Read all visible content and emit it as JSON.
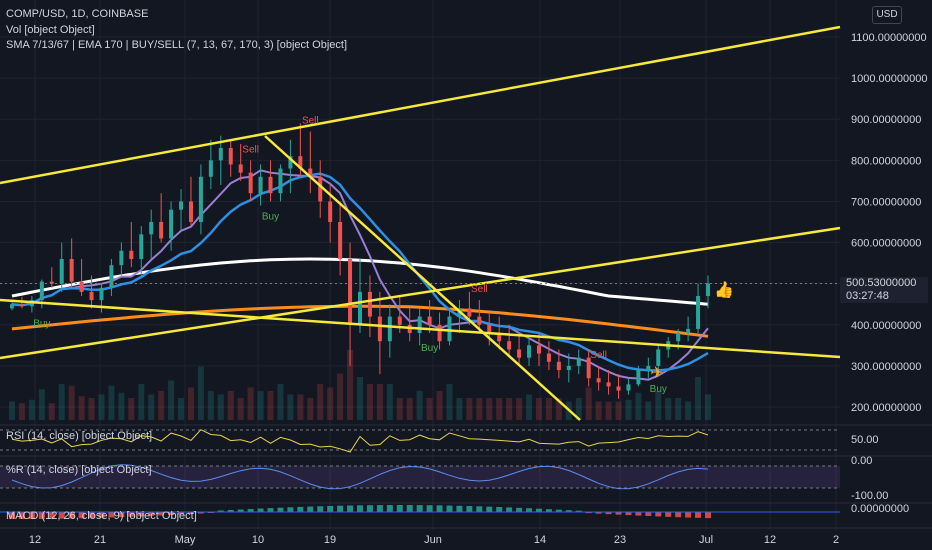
{
  "header": {
    "title": "COMP/USD, 1D, COINBASE",
    "vol_legend": "Vol [object Object]",
    "indicator_legend": "SMA 7/13/67 | EMA 170 | BUY/SELL (7, 13, 67, 170, 3) [object Object]",
    "currency": "USD"
  },
  "price_tag": {
    "price": "500.53000000",
    "countdown": "03:27:48"
  },
  "panes": {
    "rsi_legend": "RSI (14, close) [object Object]",
    "wr_legend": "%R (14, close) [object Object]",
    "macd_legend": "MACD (12, 26, close, 9) [object Object]"
  },
  "icons": {
    "current_bar_marker": "thumbs-up-icon",
    "signal_marker": "airplane-icon"
  },
  "colors": {
    "background": "#131722",
    "up": "#26a69a",
    "down": "#ef5350",
    "trendline": "#f7e93b",
    "sma_fast": "#9b7fd4",
    "sma_mid": "#2e8fe3",
    "sma_slow": "#ffffff",
    "ema": "#ff8c1a",
    "buy": "#4caf50",
    "sell": "#ef5350"
  },
  "chart_data": [
    {
      "type": "candlestick",
      "title": "COMP/USD, 1D, COINBASE",
      "x_ticks": [
        "12",
        "21",
        "May",
        "10",
        "19",
        "Jun",
        "14",
        "23",
        "Jul",
        "12",
        "2"
      ],
      "y_ticks": [
        "200.00000000",
        "300.00000000",
        "400.00000000",
        "500.00000000",
        "600.00000000",
        "700.00000000",
        "800.00000000",
        "900.00000000",
        "1000.00000000",
        "1100.00000000"
      ],
      "ylim": [
        150,
        1150
      ],
      "last_price": 500.53,
      "candles": [
        [
          440,
          455,
          435,
          450
        ],
        [
          450,
          468,
          440,
          445
        ],
        [
          445,
          470,
          430,
          460
        ],
        [
          460,
          510,
          440,
          505
        ],
        [
          505,
          540,
          490,
          500
        ],
        [
          500,
          600,
          480,
          560
        ],
        [
          560,
          610,
          490,
          505
        ],
        [
          505,
          560,
          470,
          480
        ],
        [
          480,
          520,
          440,
          460
        ],
        [
          460,
          500,
          430,
          490
        ],
        [
          490,
          560,
          470,
          545
        ],
        [
          545,
          600,
          520,
          580
        ],
        [
          580,
          650,
          540,
          560
        ],
        [
          560,
          640,
          520,
          620
        ],
        [
          620,
          680,
          560,
          650
        ],
        [
          650,
          720,
          600,
          610
        ],
        [
          610,
          700,
          580,
          680
        ],
        [
          680,
          730,
          630,
          700
        ],
        [
          700,
          760,
          640,
          650
        ],
        [
          650,
          790,
          620,
          760
        ],
        [
          760,
          850,
          730,
          800
        ],
        [
          800,
          860,
          740,
          830
        ],
        [
          830,
          850,
          760,
          790
        ],
        [
          790,
          840,
          750,
          770
        ],
        [
          770,
          800,
          700,
          720
        ],
        [
          720,
          790,
          690,
          760
        ],
        [
          760,
          800,
          700,
          720
        ],
        [
          720,
          790,
          700,
          780
        ],
        [
          780,
          850,
          720,
          810
        ],
        [
          810,
          890,
          760,
          780
        ],
        [
          780,
          870,
          720,
          760
        ],
        [
          760,
          800,
          660,
          700
        ],
        [
          700,
          740,
          600,
          650
        ],
        [
          650,
          700,
          520,
          560
        ],
        [
          560,
          600,
          300,
          400
        ],
        [
          400,
          560,
          380,
          480
        ],
        [
          480,
          520,
          370,
          420
        ],
        [
          420,
          480,
          280,
          360
        ],
        [
          360,
          450,
          320,
          420
        ],
        [
          420,
          470,
          380,
          400
        ],
        [
          400,
          440,
          360,
          380
        ],
        [
          380,
          440,
          350,
          420
        ],
        [
          420,
          460,
          380,
          400
        ],
        [
          400,
          430,
          340,
          360
        ],
        [
          360,
          440,
          350,
          420
        ],
        [
          420,
          460,
          380,
          440
        ],
        [
          440,
          480,
          400,
          420
        ],
        [
          420,
          460,
          380,
          400
        ],
        [
          400,
          430,
          350,
          380
        ],
        [
          380,
          420,
          340,
          360
        ],
        [
          360,
          400,
          320,
          340
        ],
        [
          340,
          380,
          300,
          320
        ],
        [
          320,
          370,
          300,
          350
        ],
        [
          350,
          380,
          300,
          330
        ],
        [
          330,
          360,
          290,
          310
        ],
        [
          310,
          340,
          270,
          290
        ],
        [
          290,
          330,
          260,
          300
        ],
        [
          300,
          340,
          280,
          320
        ],
        [
          320,
          340,
          250,
          270
        ],
        [
          270,
          300,
          240,
          260
        ],
        [
          260,
          290,
          230,
          250
        ],
        [
          250,
          280,
          220,
          240
        ],
        [
          240,
          270,
          230,
          255
        ],
        [
          255,
          300,
          250,
          290
        ],
        [
          290,
          320,
          270,
          300
        ],
        [
          300,
          350,
          280,
          340
        ],
        [
          340,
          370,
          320,
          360
        ],
        [
          360,
          390,
          340,
          380
        ],
        [
          380,
          420,
          360,
          390
        ],
        [
          390,
          500,
          380,
          470
        ],
        [
          470,
          520,
          440,
          500.53
        ]
      ],
      "series": [
        {
          "name": "SMA 7"
        },
        {
          "name": "SMA 13"
        },
        {
          "name": "SMA 67"
        },
        {
          "name": "EMA 170"
        }
      ],
      "signals": [
        {
          "label": "Buy",
          "index": 3
        },
        {
          "label": "Sell",
          "index": 24
        },
        {
          "label": "Buy",
          "index": 26
        },
        {
          "label": "Sell",
          "index": 30
        },
        {
          "label": "Buy",
          "index": 42
        },
        {
          "label": "Sell",
          "index": 47
        },
        {
          "label": "Sell",
          "index": 59
        },
        {
          "label": "Buy",
          "index": 65
        }
      ]
    },
    {
      "type": "line",
      "name": "RSI",
      "y_ticks": [
        "50.00"
      ]
    },
    {
      "type": "line",
      "name": "%R",
      "y_ticks": [
        "0.00",
        "-100.00"
      ]
    },
    {
      "type": "bar",
      "name": "MACD",
      "y_ticks": [
        "0.00000000"
      ]
    }
  ]
}
